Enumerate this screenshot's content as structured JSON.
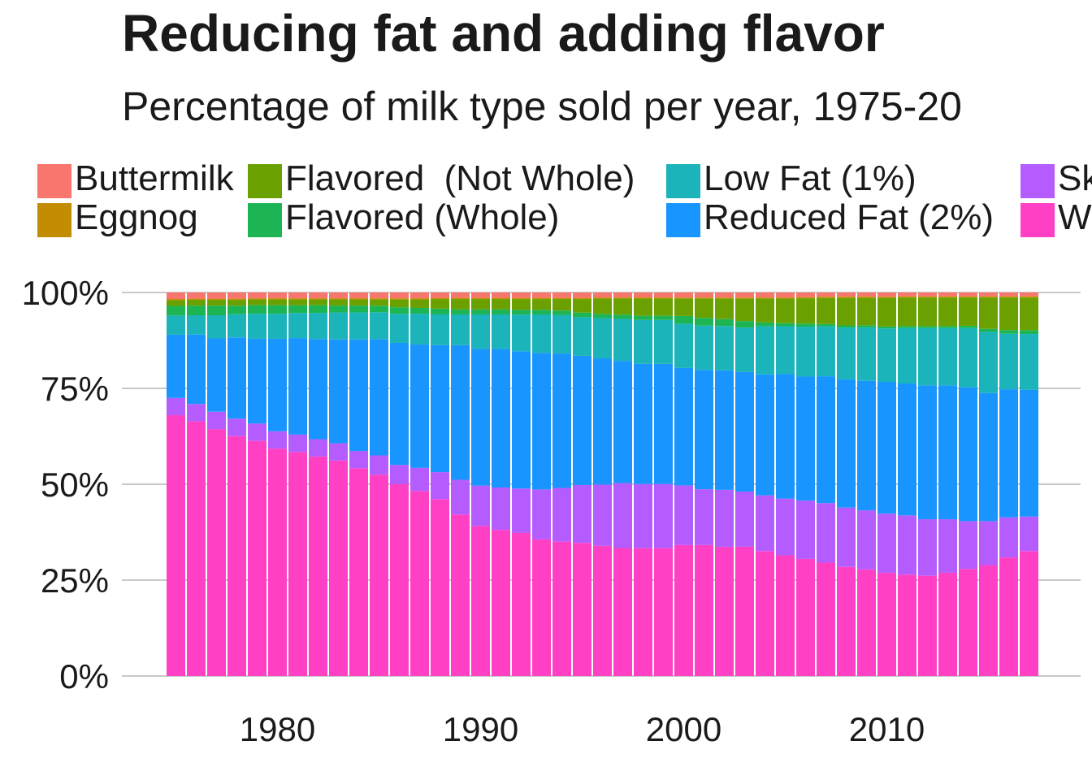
{
  "chart_data": {
    "type": "bar",
    "stacked": true,
    "normalized": true,
    "title": "Reducing fat and adding flavor",
    "subtitle": "Percentage of milk type sold per year, 1975-20",
    "xlabel": "",
    "ylabel": "",
    "ylim": [
      0,
      1
    ],
    "yticks": [
      "0%",
      "25%",
      "50%",
      "75%",
      "100%"
    ],
    "xticks": [
      "1980",
      "1990",
      "2000",
      "2010"
    ],
    "legend_position": "top",
    "x": [
      1975,
      1976,
      1977,
      1978,
      1979,
      1980,
      1981,
      1982,
      1983,
      1984,
      1985,
      1986,
      1987,
      1988,
      1989,
      1990,
      1991,
      1992,
      1993,
      1994,
      1995,
      1996,
      1997,
      1998,
      1999,
      2000,
      2001,
      2002,
      2003,
      2004,
      2005,
      2006,
      2007,
      2008,
      2009,
      2010,
      2011,
      2012,
      2013,
      2014,
      2015,
      2016,
      2017
    ],
    "series": [
      {
        "name": "Whole",
        "color": "#FF40C4",
        "values": [
          0.68,
          0.66,
          0.64,
          0.62,
          0.61,
          0.59,
          0.58,
          0.57,
          0.56,
          0.54,
          0.52,
          0.495,
          0.48,
          0.46,
          0.42,
          0.39,
          0.38,
          0.37,
          0.355,
          0.35,
          0.345,
          0.34,
          0.335,
          0.335,
          0.335,
          0.34,
          0.34,
          0.335,
          0.335,
          0.325,
          0.315,
          0.305,
          0.295,
          0.285,
          0.28,
          0.27,
          0.265,
          0.262,
          0.27,
          0.28,
          0.29,
          0.31,
          0.325
        ]
      },
      {
        "name": "Skim",
        "color": "#B55CFF",
        "values": [
          0.045,
          0.045,
          0.045,
          0.045,
          0.045,
          0.045,
          0.045,
          0.045,
          0.045,
          0.045,
          0.05,
          0.05,
          0.06,
          0.07,
          0.09,
          0.105,
          0.11,
          0.115,
          0.13,
          0.14,
          0.15,
          0.16,
          0.17,
          0.168,
          0.168,
          0.155,
          0.145,
          0.148,
          0.143,
          0.145,
          0.148,
          0.152,
          0.155,
          0.155,
          0.155,
          0.155,
          0.155,
          0.148,
          0.14,
          0.125,
          0.115,
          0.105,
          0.09
        ]
      },
      {
        "name": "Reduced Fat (2%)",
        "color": "#1895FF",
        "values": [
          0.165,
          0.18,
          0.19,
          0.21,
          0.22,
          0.24,
          0.25,
          0.26,
          0.27,
          0.29,
          0.3,
          0.315,
          0.32,
          0.33,
          0.35,
          0.355,
          0.36,
          0.355,
          0.355,
          0.35,
          0.335,
          0.33,
          0.32,
          0.315,
          0.315,
          0.305,
          0.31,
          0.31,
          0.31,
          0.315,
          0.325,
          0.323,
          0.33,
          0.335,
          0.34,
          0.345,
          0.345,
          0.35,
          0.35,
          0.35,
          0.335,
          0.335,
          0.33
        ]
      },
      {
        "name": "Low Fat (1%)",
        "color": "#1BB4BA",
        "values": [
          0.05,
          0.05,
          0.06,
          0.06,
          0.065,
          0.065,
          0.065,
          0.068,
          0.07,
          0.07,
          0.07,
          0.075,
          0.08,
          0.08,
          0.08,
          0.09,
          0.09,
          0.095,
          0.1,
          0.1,
          0.1,
          0.105,
          0.11,
          0.115,
          0.115,
          0.115,
          0.115,
          0.115,
          0.115,
          0.125,
          0.125,
          0.13,
          0.13,
          0.135,
          0.14,
          0.14,
          0.145,
          0.15,
          0.15,
          0.155,
          0.16,
          0.145,
          0.145
        ]
      },
      {
        "name": "Flavored (Whole)",
        "color": "#1DB454",
        "values": [
          0.025,
          0.025,
          0.025,
          0.022,
          0.022,
          0.022,
          0.02,
          0.02,
          0.018,
          0.018,
          0.017,
          0.017,
          0.015,
          0.015,
          0.013,
          0.013,
          0.013,
          0.012,
          0.012,
          0.012,
          0.012,
          0.011,
          0.011,
          0.011,
          0.011,
          0.02,
          0.02,
          0.018,
          0.017,
          0.01,
          0.008,
          0.008,
          0.006,
          0.006,
          0.006,
          0.005,
          0.005,
          0.005,
          0.005,
          0.006,
          0.008,
          0.01,
          0.01
        ]
      },
      {
        "name": "Flavored  (Not Whole)",
        "color": "#6AA101",
        "values": [
          0.015,
          0.015,
          0.015,
          0.015,
          0.015,
          0.015,
          0.015,
          0.015,
          0.016,
          0.016,
          0.016,
          0.02,
          0.022,
          0.025,
          0.027,
          0.027,
          0.027,
          0.028,
          0.028,
          0.03,
          0.035,
          0.04,
          0.042,
          0.045,
          0.045,
          0.045,
          0.05,
          0.053,
          0.058,
          0.062,
          0.064,
          0.066,
          0.068,
          0.072,
          0.072,
          0.075,
          0.075,
          0.075,
          0.075,
          0.074,
          0.082,
          0.085,
          0.085
        ]
      },
      {
        "name": "Eggnog",
        "color": "#C38D03",
        "values": [
          0.003,
          0.003,
          0.003,
          0.003,
          0.003,
          0.003,
          0.003,
          0.003,
          0.003,
          0.003,
          0.003,
          0.003,
          0.003,
          0.003,
          0.003,
          0.003,
          0.003,
          0.003,
          0.003,
          0.003,
          0.003,
          0.003,
          0.003,
          0.003,
          0.003,
          0.003,
          0.003,
          0.003,
          0.003,
          0.003,
          0.003,
          0.003,
          0.003,
          0.003,
          0.003,
          0.003,
          0.003,
          0.003,
          0.003,
          0.003,
          0.003,
          0.003,
          0.003
        ]
      },
      {
        "name": "Buttermilk",
        "color": "#F8766D",
        "values": [
          0.017,
          0.016,
          0.016,
          0.016,
          0.015,
          0.015,
          0.015,
          0.015,
          0.015,
          0.015,
          0.015,
          0.015,
          0.015,
          0.014,
          0.014,
          0.014,
          0.014,
          0.014,
          0.014,
          0.014,
          0.014,
          0.013,
          0.013,
          0.013,
          0.013,
          0.013,
          0.013,
          0.013,
          0.013,
          0.013,
          0.013,
          0.012,
          0.011,
          0.011,
          0.011,
          0.011,
          0.01,
          0.01,
          0.01,
          0.01,
          0.01,
          0.01,
          0.01
        ]
      }
    ],
    "legend": [
      {
        "name": "Buttermilk",
        "color": "#F8766D"
      },
      {
        "name": "Eggnog",
        "color": "#C38D03"
      },
      {
        "name": "Flavored  (Not Whole)",
        "color": "#6AA101"
      },
      {
        "name": "Flavored (Whole)",
        "color": "#1DB454"
      },
      {
        "name": "Low Fat (1%)",
        "color": "#1BB4BA"
      },
      {
        "name": "Reduced Fat (2%)",
        "color": "#1895FF"
      },
      {
        "name": "Sk",
        "color": "#B55CFF"
      },
      {
        "name": "W",
        "color": "#FF40C4"
      }
    ]
  }
}
